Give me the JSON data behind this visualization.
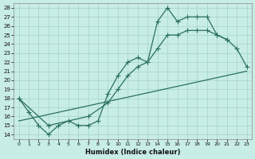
{
  "xlabel": "Humidex (Indice chaleur)",
  "xlim": [
    -0.5,
    23.5
  ],
  "ylim": [
    13.5,
    28.5
  ],
  "xticks": [
    0,
    1,
    2,
    3,
    4,
    5,
    6,
    7,
    8,
    9,
    10,
    11,
    12,
    13,
    14,
    15,
    16,
    17,
    18,
    19,
    20,
    21,
    22,
    23
  ],
  "yticks": [
    14,
    15,
    16,
    17,
    18,
    19,
    20,
    21,
    22,
    23,
    24,
    25,
    26,
    27,
    28
  ],
  "bg_color": "#c8ece6",
  "grid_color": "#a0d4ca",
  "line_color": "#2a7060",
  "curve_jagged": {
    "x": [
      0,
      1,
      2,
      3,
      4,
      5,
      6,
      7,
      8,
      9,
      10,
      11,
      12,
      13,
      14,
      15,
      16,
      17,
      18,
      19,
      20,
      21
    ],
    "y": [
      18,
      16.5,
      15,
      14,
      15,
      15.5,
      15,
      15,
      15.5,
      18.5,
      20.5,
      22,
      22.5,
      22,
      26.5,
      28,
      26.5,
      27,
      27,
      27,
      25,
      24.5
    ]
  },
  "curve_bell": {
    "x": [
      0,
      3,
      7,
      9,
      10,
      11,
      12,
      13,
      14,
      15,
      16,
      17,
      18,
      19,
      20,
      21,
      22,
      23
    ],
    "y": [
      18,
      15,
      16,
      17.5,
      19,
      20.5,
      21.5,
      22,
      23.5,
      25,
      25,
      25.5,
      25.5,
      25.5,
      25,
      24.5,
      23.5,
      21.5
    ]
  },
  "curve_straight": {
    "x": [
      0,
      23
    ],
    "y": [
      15.5,
      21
    ]
  }
}
